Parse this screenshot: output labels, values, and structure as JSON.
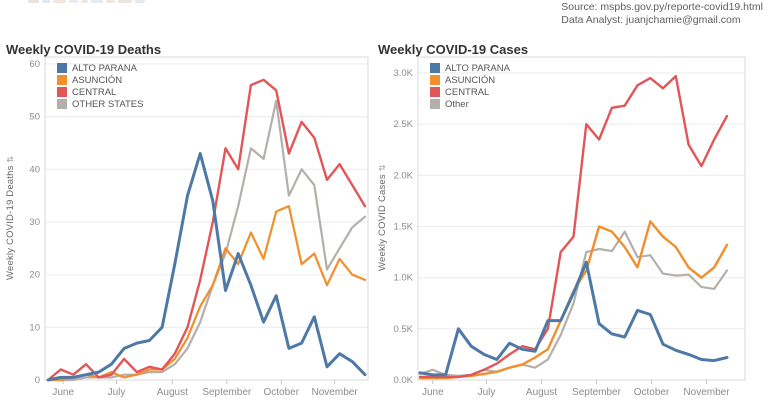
{
  "header": {
    "source_line": "Source: mspbs.gov.py/reporte-covid19.html",
    "analyst_line": "Data Analyst: juanjchamie@gmail.com"
  },
  "chart_data": [
    {
      "type": "line",
      "title": "Weekly COVID-19 Deaths",
      "y_axis_label": "Weekly COVID-19 Deaths",
      "sort_icon": "⇅",
      "ylim": [
        0,
        60
      ],
      "grid": true,
      "legend_position": "top-left",
      "yticks": [
        {
          "v": 0,
          "label": "0"
        },
        {
          "v": 10,
          "label": "10"
        },
        {
          "v": 20,
          "label": "20"
        },
        {
          "v": 30,
          "label": "30"
        },
        {
          "v": 40,
          "label": "40"
        },
        {
          "v": 50,
          "label": "50"
        },
        {
          "v": 60,
          "label": "60"
        }
      ],
      "xticks": [
        {
          "week": 1.2,
          "label": "June"
        },
        {
          "week": 5.4,
          "label": "July"
        },
        {
          "week": 9.8,
          "label": "August"
        },
        {
          "week": 14.1,
          "label": "September"
        },
        {
          "week": 18.4,
          "label": "October"
        },
        {
          "week": 22.6,
          "label": "November"
        }
      ],
      "x_gap_left": 3,
      "x_gap_right": 3,
      "draw_order": [
        3,
        1,
        2,
        0
      ],
      "series": [
        {
          "name": "ALTO PARANA",
          "slug": "alto-parana",
          "color": "#4e79a7",
          "width": 3,
          "values": [
            0,
            0.5,
            0.5,
            1,
            1.5,
            3,
            6,
            7,
            7.5,
            10,
            22,
            35,
            43,
            34,
            17,
            24,
            18,
            11,
            16,
            6,
            7,
            12,
            2.5,
            5,
            3.5,
            1
          ]
        },
        {
          "name": "ASUNCIÓN",
          "slug": "asuncion",
          "color": "#f28e2b",
          "width": 2.2,
          "values": [
            0,
            0,
            0.5,
            1,
            0.5,
            1.5,
            0.5,
            1,
            2,
            2,
            4,
            8,
            14,
            18,
            25,
            22,
            28,
            23,
            32,
            33,
            22,
            24,
            18,
            23,
            20,
            19
          ]
        },
        {
          "name": "CENTRAL",
          "slug": "central",
          "color": "#e15759",
          "width": 2.4,
          "values": [
            0,
            2,
            1,
            3,
            0.5,
            1,
            4,
            1.5,
            2.5,
            2,
            5,
            10,
            19,
            30,
            44,
            40,
            56,
            57,
            55,
            43,
            49,
            46,
            38,
            41,
            37,
            33
          ]
        },
        {
          "name": "OTHER STATES",
          "slug": "other-states",
          "color": "#b5afab",
          "width": 2.2,
          "values": [
            0,
            0,
            0,
            0.5,
            0.5,
            0.5,
            1,
            1,
            1.5,
            1.5,
            3,
            6,
            11,
            18,
            24,
            33,
            44,
            42,
            53,
            35,
            40,
            37,
            21,
            25,
            29,
            31
          ]
        }
      ]
    },
    {
      "type": "line",
      "title": "Weekly COVID-19 Cases",
      "y_axis_label": "Weekly COVID Cases",
      "sort_icon": "⇅",
      "ylim": [
        0,
        3
      ],
      "grid": true,
      "legend_position": "top-left",
      "yticks": [
        {
          "v": 0,
          "label": "0.0K"
        },
        {
          "v": 0.5,
          "label": "0.5K"
        },
        {
          "v": 1,
          "label": "1.0K"
        },
        {
          "v": 1.5,
          "label": "1.5K"
        },
        {
          "v": 2,
          "label": "2.0K"
        },
        {
          "v": 2.5,
          "label": "2.5K"
        },
        {
          "v": 3,
          "label": "3.0K"
        }
      ],
      "xticks": [
        {
          "week": 1.0,
          "label": "June"
        },
        {
          "week": 5.2,
          "label": "July"
        },
        {
          "week": 9.5,
          "label": "August"
        },
        {
          "week": 13.8,
          "label": "September"
        },
        {
          "week": 18.1,
          "label": "October"
        },
        {
          "week": 22.4,
          "label": "November"
        }
      ],
      "x_gap_left": 2,
      "x_gap_right": 18,
      "draw_order": [
        3,
        1,
        2,
        0
      ],
      "series": [
        {
          "name": "ALTO PARANA",
          "slug": "alto-parana",
          "color": "#4e79a7",
          "width": 3,
          "values": [
            0.07,
            0.05,
            0.05,
            0.5,
            0.33,
            0.25,
            0.2,
            0.36,
            0.3,
            0.28,
            0.58,
            0.58,
            0.85,
            1.15,
            0.55,
            0.45,
            0.42,
            0.68,
            0.64,
            0.35,
            0.29,
            0.25,
            0.2,
            0.19,
            0.22
          ]
        },
        {
          "name": "ASUNCIÓN",
          "slug": "asuncion",
          "color": "#f28e2b",
          "width": 2.4,
          "values": [
            0.02,
            0.02,
            0.02,
            0.03,
            0.04,
            0.06,
            0.08,
            0.12,
            0.15,
            0.22,
            0.3,
            0.58,
            0.87,
            1.07,
            1.5,
            1.45,
            1.3,
            1.1,
            1.55,
            1.4,
            1.3,
            1.1,
            1.0,
            1.1,
            1.32
          ]
        },
        {
          "name": "CENTRAL",
          "slug": "central",
          "color": "#e15759",
          "width": 2.4,
          "values": [
            0.03,
            0.03,
            0.03,
            0.03,
            0.05,
            0.1,
            0.16,
            0.25,
            0.33,
            0.3,
            0.5,
            1.25,
            1.4,
            2.5,
            2.35,
            2.66,
            2.68,
            2.88,
            2.95,
            2.85,
            2.97,
            2.3,
            2.09,
            2.35,
            2.58
          ]
        },
        {
          "name": "Other",
          "slug": "other",
          "color": "#b5afab",
          "width": 2.2,
          "values": [
            0.06,
            0.1,
            0.05,
            0.04,
            0.05,
            0.1,
            0.08,
            0.12,
            0.15,
            0.12,
            0.2,
            0.44,
            0.75,
            1.25,
            1.28,
            1.26,
            1.45,
            1.2,
            1.22,
            1.04,
            1.02,
            1.03,
            0.91,
            0.89,
            1.07
          ]
        }
      ]
    }
  ]
}
